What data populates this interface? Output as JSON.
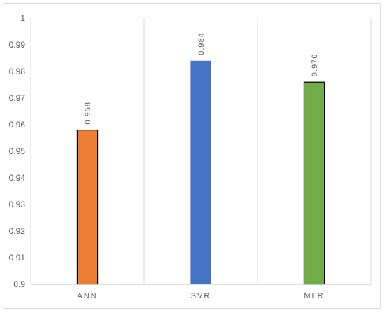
{
  "chart_data": {
    "type": "bar",
    "title": "",
    "xlabel": "",
    "ylabel": "",
    "categories": [
      "ANN",
      "SVR",
      "MLR"
    ],
    "values": [
      0.958,
      0.984,
      0.976
    ],
    "data_labels": [
      "0.958",
      "0.984",
      "0.976"
    ],
    "colors": [
      "#ED7D31",
      "#4472C4",
      "#70AD47"
    ],
    "ylim": [
      0.9,
      1
    ],
    "yticks": [
      "0.9",
      "0.91",
      "0.92",
      "0.93",
      "0.94",
      "0.95",
      "0.96",
      "0.97",
      "0.98",
      "0.99",
      "1"
    ],
    "grid": "vertical-separators",
    "legend": "none"
  }
}
